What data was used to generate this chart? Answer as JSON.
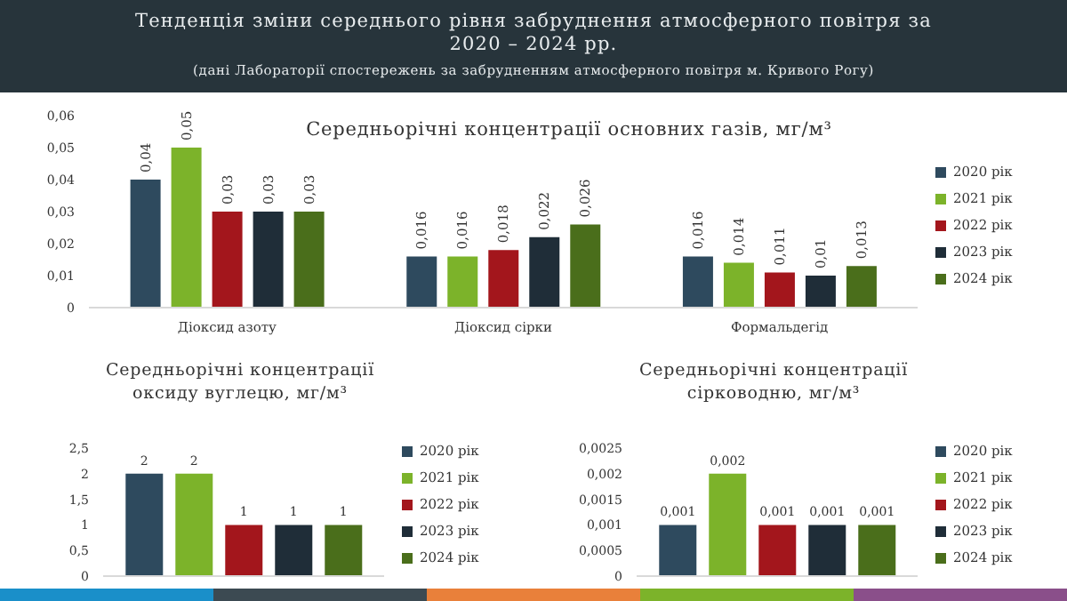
{
  "chart_data": [
    {
      "type": "other",
      "title": "Тенденція зміни середнього рівня забруднення атмосферного повітря за 2020 – 2024 рр.",
      "subtitle": "(дані Лабораторії спостережень за забрудненням атмосферного повітря м. Кривого Рогу)"
    },
    {
      "type": "bar",
      "title": "Середньорічні концентрації основних газів, мг/м³",
      "categories": [
        "Діоксид азоту",
        "Діоксид сірки",
        "Формальдегід"
      ],
      "series": [
        {
          "name": "2020 рік",
          "color": "#2e4a5e",
          "values": [
            0.04,
            0.016,
            0.016
          ],
          "value_labels": [
            "0,04",
            "0,016",
            "0,016"
          ]
        },
        {
          "name": "2021 рік",
          "color": "#7cb32a",
          "values": [
            0.05,
            0.016,
            0.014
          ],
          "value_labels": [
            "0,05",
            "0,016",
            "0,014"
          ]
        },
        {
          "name": "2022 рік",
          "color": "#a3161c",
          "values": [
            0.03,
            0.018,
            0.011
          ],
          "value_labels": [
            "0,03",
            "0,018",
            "0,011"
          ]
        },
        {
          "name": "2023 рік",
          "color": "#1f2d38",
          "values": [
            0.03,
            0.022,
            0.01
          ],
          "value_labels": [
            "0,03",
            "0,022",
            "0,01"
          ]
        },
        {
          "name": "2024 рік",
          "color": "#4a6e1b",
          "values": [
            0.03,
            0.026,
            0.013
          ],
          "value_labels": [
            "0,03",
            "0,026",
            "0,013"
          ]
        }
      ],
      "ylim": [
        0,
        0.06
      ],
      "yticks": [
        0,
        {
          "value": 0.01,
          "label": "0,01"
        },
        {
          "value": 0.02,
          "label": "0,02"
        },
        {
          "value": 0.03,
          "label": "0,03"
        },
        {
          "value": 0.04,
          "label": "0,04"
        },
        {
          "value": 0.05,
          "label": "0,05"
        },
        {
          "value": 0.06,
          "label": "0,06"
        }
      ],
      "legend": "right"
    },
    {
      "type": "bar",
      "title": "Середньорічні концентрації оксиду вуглецю, мг/м³",
      "categories": [
        null
      ],
      "series": [
        {
          "name": "2020 рік",
          "color": "#2e4a5e",
          "values": [
            2
          ],
          "value_labels": [
            "2"
          ]
        },
        {
          "name": "2021 рік",
          "color": "#7cb32a",
          "values": [
            2
          ],
          "value_labels": [
            "2"
          ]
        },
        {
          "name": "2022 рік",
          "color": "#a3161c",
          "values": [
            1
          ],
          "value_labels": [
            "1"
          ]
        },
        {
          "name": "2023 рік",
          "color": "#1f2d38",
          "values": [
            1
          ],
          "value_labels": [
            "1"
          ]
        },
        {
          "name": "2024 рік",
          "color": "#4a6e1b",
          "values": [
            1
          ],
          "value_labels": [
            "1"
          ]
        }
      ],
      "ylim": [
        0,
        2.5
      ],
      "yticks": [
        0,
        {
          "value": 0.5,
          "label": "0,5"
        },
        1,
        {
          "value": 1.5,
          "label": "1,5"
        },
        2,
        {
          "value": 2.5,
          "label": "2,5"
        }
      ],
      "legend": "right",
      "tick_labels": "y"
    },
    {
      "type": "bar",
      "title": "Середньорічні концентрації сірководню, мг/м³",
      "categories": [
        null
      ],
      "series": [
        {
          "name": "2020 рік",
          "color": "#2e4a5e",
          "values": [
            0.001
          ],
          "value_labels": [
            "0,001"
          ]
        },
        {
          "name": "2021 рік",
          "color": "#7cb32a",
          "values": [
            0.002
          ],
          "value_labels": [
            "0,002"
          ]
        },
        {
          "name": "2022 рік",
          "color": "#a3161c",
          "values": [
            0.001
          ],
          "value_labels": [
            "0,001"
          ]
        },
        {
          "name": "2023 рік",
          "color": "#1f2d38",
          "values": [
            0.001
          ],
          "value_labels": [
            "0,001"
          ]
        },
        {
          "name": "2024 рік",
          "color": "#4a6e1b",
          "values": [
            0.001
          ],
          "value_labels": [
            "0,001"
          ]
        }
      ],
      "ylim": [
        0,
        0.0025
      ],
      "yticks": [
        0,
        {
          "value": 0.0005,
          "label": "0,0005"
        },
        {
          "value": 0.001,
          "label": "0,001"
        },
        {
          "value": 0.0015,
          "label": "0,0015"
        },
        {
          "value": 0.002,
          "label": "0,002"
        },
        {
          "value": 0.0025,
          "label": "0,0025"
        }
      ],
      "legend": "right",
      "tick_labels": "y"
    }
  ]
}
